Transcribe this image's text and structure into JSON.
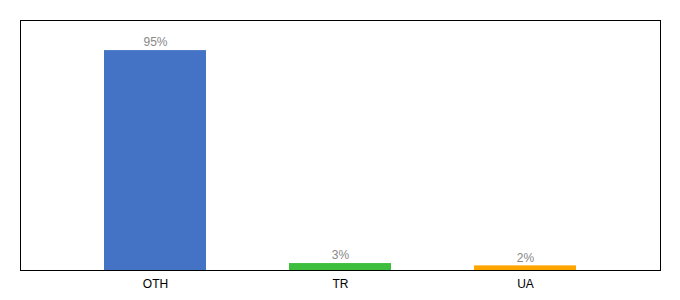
{
  "chart_data": {
    "type": "bar",
    "categories": [
      "OTH",
      "TR",
      "UA"
    ],
    "values": [
      95,
      3,
      2
    ],
    "value_labels": [
      "95%",
      "3%",
      "2%"
    ],
    "colors": [
      "#4472C4",
      "#3DBF3D",
      "#FFA500"
    ],
    "ylim": [
      0,
      108
    ],
    "data_labels": true,
    "tick_labels": "x"
  }
}
